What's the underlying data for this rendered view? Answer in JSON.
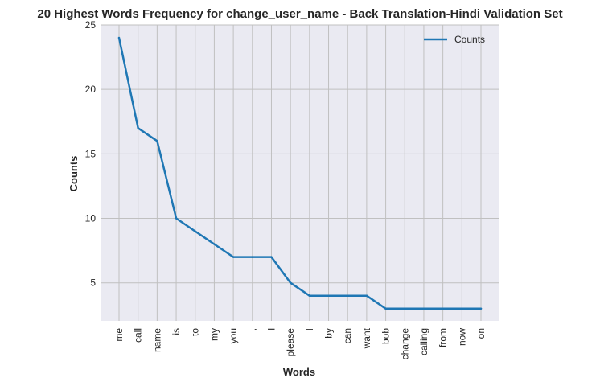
{
  "chart_data": {
    "type": "line",
    "title": "20 Highest Words Frequency for change_user_name - Back Translation-Hindi Validation Set",
    "xlabel": "Words",
    "ylabel": "Counts",
    "categories": [
      "me",
      "call",
      "name",
      "is",
      "to",
      "my",
      "you",
      ",",
      "i",
      "please",
      "I",
      "by",
      "can",
      "want",
      "bob",
      "change",
      "calling",
      "from",
      "now",
      "on"
    ],
    "series": [
      {
        "name": "Counts",
        "values": [
          24,
          17,
          16,
          10,
          9,
          8,
          7,
          7,
          7,
          5,
          4,
          4,
          4,
          4,
          3,
          3,
          3,
          3,
          3,
          3
        ]
      }
    ],
    "ylim": [
      2.05,
      25
    ],
    "yticks": [
      5,
      10,
      15,
      20,
      25
    ],
    "grid": true,
    "legend_position": "top-right",
    "colors": {
      "line": "#1f77b4",
      "plot_background": "#eaeaf2",
      "grid": "#c0c0c0"
    }
  }
}
